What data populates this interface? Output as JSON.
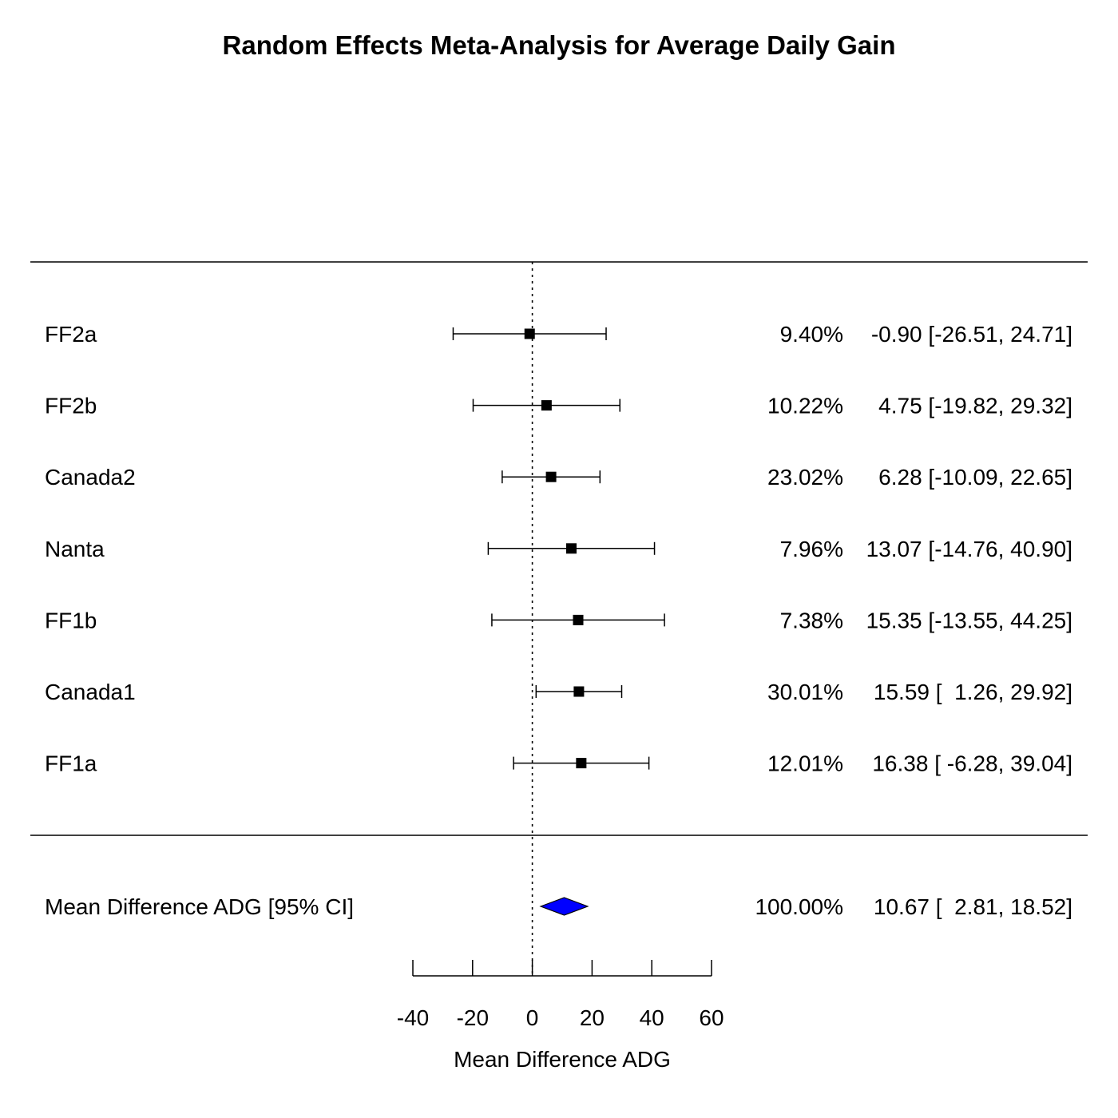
{
  "chart_data": {
    "type": "forest",
    "title": "Random Effects Meta-Analysis for Average Daily Gain",
    "xlabel": "Mean Difference ADG",
    "xlim": [
      -40,
      60
    ],
    "xticks": [
      -40,
      -20,
      0,
      20,
      40,
      60
    ],
    "xtick_labels": [
      "-40",
      "-20",
      "0",
      "20",
      "40",
      "60"
    ],
    "reference_line": 0,
    "studies": [
      {
        "name": "FF2a",
        "estimate": -0.9,
        "lower": -26.51,
        "upper": 24.71,
        "weight_label": "9.40%",
        "ci_label": "-0.90 [-26.51, 24.71]"
      },
      {
        "name": "FF2b",
        "estimate": 4.75,
        "lower": -19.82,
        "upper": 29.32,
        "weight_label": "10.22%",
        "ci_label": "4.75 [-19.82, 29.32]"
      },
      {
        "name": "Canada2",
        "estimate": 6.28,
        "lower": -10.09,
        "upper": 22.65,
        "weight_label": "23.02%",
        "ci_label": "6.28 [-10.09, 22.65]"
      },
      {
        "name": "Nanta",
        "estimate": 13.07,
        "lower": -14.76,
        "upper": 40.9,
        "weight_label": "7.96%",
        "ci_label": "13.07 [-14.76, 40.90]"
      },
      {
        "name": "FF1b",
        "estimate": 15.35,
        "lower": -13.55,
        "upper": 44.25,
        "weight_label": "7.38%",
        "ci_label": "15.35 [-13.55, 44.25]"
      },
      {
        "name": "Canada1",
        "estimate": 15.59,
        "lower": 1.26,
        "upper": 29.92,
        "weight_label": "30.01%",
        "ci_label": "15.59 [  1.26, 29.92]"
      },
      {
        "name": "FF1a",
        "estimate": 16.38,
        "lower": -6.28,
        "upper": 39.04,
        "weight_label": "12.01%",
        "ci_label": "16.38 [ -6.28, 39.04]"
      }
    ],
    "summary": {
      "name": "Mean Difference ADG [95% CI]",
      "estimate": 10.67,
      "lower": 2.81,
      "upper": 18.52,
      "weight_label": "100.00%",
      "ci_label": "10.67 [  2.81, 18.52]"
    },
    "colors": {
      "summary_fill": "#0000ff",
      "marker": "#000000",
      "line": "#000000"
    }
  }
}
